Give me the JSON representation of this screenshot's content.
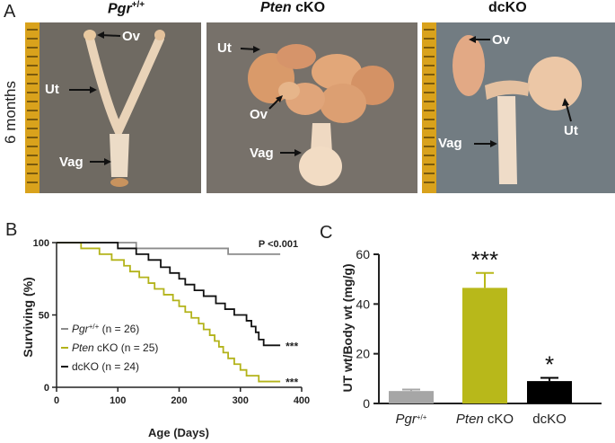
{
  "figure": {
    "panel_a_letter": "A",
    "panel_b_letter": "B",
    "panel_c_letter": "C",
    "side_label": "6 months",
    "photos": [
      {
        "title_main": "Pgr",
        "title_sup": "+/+",
        "labels": [
          "Ov",
          "Ut",
          "Vag"
        ]
      },
      {
        "title_italic": "Pten",
        "title_rest": " cKO",
        "labels": [
          "Ut",
          "Ov",
          "Vag"
        ]
      },
      {
        "title": "dcKO",
        "labels": [
          "Ov",
          "Ut",
          "Vag"
        ]
      }
    ]
  },
  "chart_data": [
    {
      "type": "line",
      "step": true,
      "xlabel": "Age (Days)",
      "ylabel": "Surviving (%)",
      "xlim": [
        0,
        400
      ],
      "ylim": [
        0,
        100
      ],
      "xticks": [
        0,
        100,
        200,
        300,
        400
      ],
      "yticks": [
        0,
        50,
        100
      ],
      "annotation": "P <0.001",
      "series": [
        {
          "name_italic": "Pgr",
          "name_sup": "+/+",
          "name_rest": " (n = 26)",
          "color": "#8c8c8c",
          "x": [
            0,
            130,
            130,
            280,
            280,
            365
          ],
          "y": [
            100,
            100,
            96,
            96,
            92,
            92
          ]
        },
        {
          "name_italic": "Pten",
          "name_rest": " cKO (n = 25)",
          "color": "#b3b31a",
          "end_label": "***",
          "x": [
            0,
            40,
            40,
            70,
            70,
            90,
            90,
            110,
            110,
            120,
            120,
            135,
            135,
            150,
            150,
            160,
            160,
            175,
            175,
            190,
            190,
            200,
            200,
            210,
            210,
            220,
            220,
            232,
            232,
            240,
            240,
            250,
            250,
            258,
            258,
            265,
            265,
            272,
            272,
            280,
            280,
            290,
            290,
            300,
            300,
            310,
            310,
            330,
            330,
            365
          ],
          "y": [
            100,
            100,
            96,
            96,
            92,
            92,
            88,
            88,
            84,
            84,
            80,
            80,
            76,
            76,
            72,
            72,
            68,
            68,
            64,
            64,
            60,
            60,
            56,
            56,
            52,
            52,
            48,
            48,
            44,
            44,
            40,
            40,
            36,
            36,
            32,
            32,
            28,
            28,
            24,
            24,
            20,
            20,
            16,
            16,
            12,
            12,
            8,
            8,
            4,
            4
          ]
        },
        {
          "name": "dcKO (n = 24)",
          "color": "#111111",
          "end_label": "***",
          "x": [
            0,
            100,
            100,
            130,
            130,
            150,
            150,
            170,
            170,
            185,
            185,
            200,
            200,
            210,
            210,
            225,
            225,
            240,
            240,
            260,
            260,
            275,
            275,
            290,
            290,
            310,
            310,
            318,
            318,
            325,
            325,
            330,
            330,
            338,
            338,
            345,
            345,
            365
          ],
          "y": [
            100,
            100,
            96,
            96,
            92,
            92,
            88,
            88,
            83,
            83,
            79,
            79,
            75,
            75,
            71,
            71,
            67,
            67,
            63,
            63,
            58,
            58,
            54,
            54,
            50,
            50,
            46,
            46,
            42,
            42,
            38,
            38,
            33,
            33,
            29,
            29,
            29,
            29
          ]
        }
      ],
      "legend": "bottom-left"
    },
    {
      "type": "bar",
      "ylabel": "UT wt/Body wt (mg/g)",
      "ylim": [
        0,
        60
      ],
      "yticks": [
        0,
        20,
        40,
        60
      ],
      "categories": [
        {
          "italic": "Pgr",
          "sup": "+/+",
          "rest": ""
        },
        {
          "italic": "Pten",
          "sup": "",
          "rest": " cKO"
        },
        {
          "italic": "",
          "sup": "",
          "rest": "dcKO"
        }
      ],
      "values": [
        5,
        46.5,
        9
      ],
      "errors": [
        0.6,
        6,
        1.3
      ],
      "colors": [
        "#a6a6a6",
        "#b8b81a",
        "#000000"
      ],
      "significance": [
        "",
        "***",
        "*"
      ]
    }
  ]
}
